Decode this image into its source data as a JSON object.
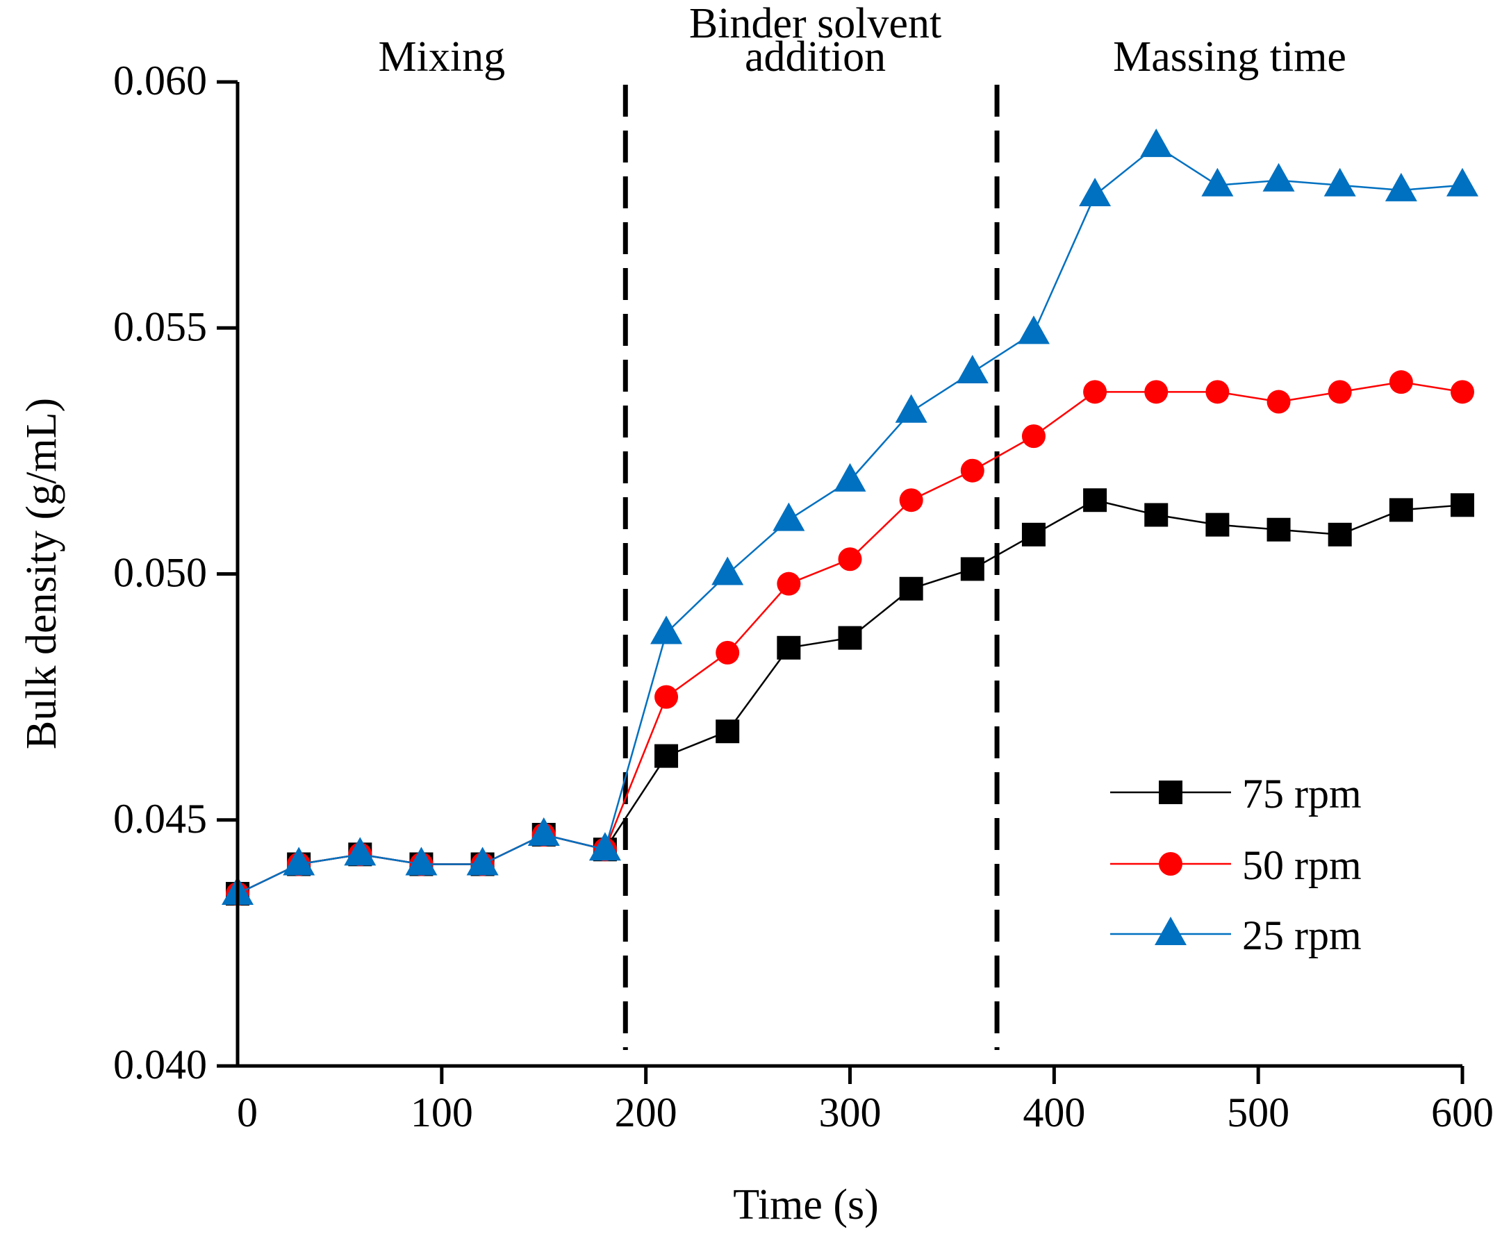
{
  "chart_data": {
    "type": "line",
    "title": "",
    "xlabel": "Time (s)",
    "ylabel": "Bulk density (g/mL)",
    "xlim": [
      0,
      600
    ],
    "ylim": [
      0.04,
      0.06
    ],
    "xticks": [
      0,
      100,
      200,
      300,
      400,
      500,
      600
    ],
    "xtick_labels": [
      "0",
      "100",
      "200",
      "300",
      "400",
      "500",
      "600"
    ],
    "yticks": [
      0.04,
      0.045,
      0.05,
      0.055,
      0.06
    ],
    "ytick_labels": [
      "0.040",
      "0.045",
      "0.050",
      "0.055",
      "0.060"
    ],
    "grid": false,
    "legend_position": "lower-right",
    "phase_dividers": [
      190,
      372
    ],
    "phases": [
      {
        "lines": [
          "Mixing"
        ],
        "x": 100
      },
      {
        "lines": [
          "Binder solvent",
          "addition"
        ],
        "x": 283
      },
      {
        "lines": [
          "Massing time"
        ],
        "x": 486
      }
    ],
    "x": [
      0,
      30,
      60,
      90,
      120,
      150,
      180,
      210,
      240,
      270,
      300,
      330,
      360,
      390,
      420,
      450,
      480,
      510,
      540,
      570,
      600
    ],
    "series": [
      {
        "name": "75 rpm",
        "color": "#000000",
        "marker": "square",
        "values": [
          0.0435,
          0.0441,
          0.0443,
          0.0441,
          0.0441,
          0.0447,
          0.0444,
          0.0463,
          0.0468,
          0.0485,
          0.0487,
          0.0497,
          0.0501,
          0.0508,
          0.0515,
          0.0512,
          0.051,
          0.0509,
          0.0508,
          0.0513,
          0.0514
        ]
      },
      {
        "name": "50 rpm",
        "color": "#ff0000",
        "marker": "circle",
        "values": [
          0.0435,
          0.0441,
          0.0443,
          0.0441,
          0.0441,
          0.0447,
          0.0444,
          0.0475,
          0.0484,
          0.0498,
          0.0503,
          0.0515,
          0.0521,
          0.0528,
          0.0537,
          0.0537,
          0.0537,
          0.0535,
          0.0537,
          0.0539,
          0.0537
        ]
      },
      {
        "name": "25 rpm",
        "color": "#0070c0",
        "marker": "triangle",
        "values": [
          0.0435,
          0.0441,
          0.0443,
          0.0441,
          0.0441,
          0.0447,
          0.0444,
          0.0488,
          0.05,
          0.0511,
          0.0519,
          0.0533,
          0.0541,
          0.0549,
          0.0577,
          0.0587,
          0.0579,
          0.058,
          0.0579,
          0.0578,
          0.0579
        ]
      }
    ]
  }
}
